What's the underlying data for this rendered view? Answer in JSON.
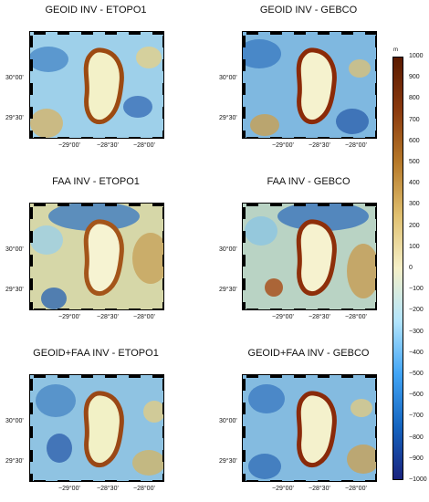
{
  "panels": [
    {
      "title": "GEOID INV - ETOPO1"
    },
    {
      "title": "GEOID INV  - GEBCO"
    },
    {
      "title": "FAA INV - ETOPO1"
    },
    {
      "title": "FAA INV - GEBCO"
    },
    {
      "title": "GEOID+FAA INV - ETOPO1"
    },
    {
      "title": "GEOID+FAA INV - GEBCO"
    }
  ],
  "axes": {
    "lat_labels": [
      "30°00'",
      "29°30'"
    ],
    "lon_labels": [
      "−29°00'",
      "−28°30'",
      "−28°00'"
    ]
  },
  "colorbar": {
    "unit": "m",
    "min": -1000,
    "max": 1000,
    "step": 100,
    "labels": [
      "1000",
      "900",
      "800",
      "700",
      "600",
      "500",
      "400",
      "300",
      "200",
      "100",
      "0",
      "−100",
      "−200",
      "−300",
      "−400",
      "−500",
      "−600",
      "−700",
      "−800",
      "−900",
      "−1000"
    ],
    "colors": [
      "#1a237e",
      "#1565c0",
      "#42a5f5",
      "#b3e5fc",
      "#f5f0c8",
      "#e0c070",
      "#b77a2a",
      "#8b3a0e",
      "#5a1a00"
    ]
  }
}
